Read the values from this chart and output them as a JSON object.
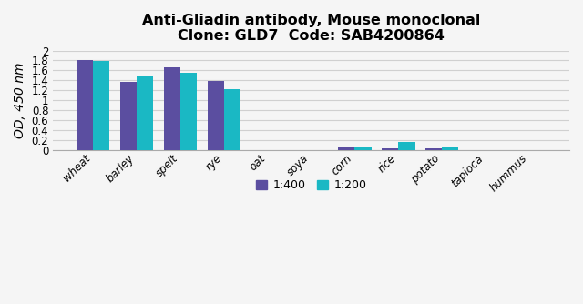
{
  "title_line1": "Anti-Gliadin antibody, Mouse monoclonal",
  "title_line2": "Clone: GLD7  Code: SAB4200864",
  "ylabel": "OD, 450 nm",
  "categories": [
    "wheat",
    "barley",
    "spelt",
    "rye",
    "oat",
    "soya",
    "corn",
    "rice",
    "potato",
    "tapioca",
    "hummus"
  ],
  "values_400": [
    1.81,
    1.37,
    1.67,
    1.39,
    0.0,
    0.0,
    0.055,
    0.03,
    0.025,
    0.0,
    0.0
  ],
  "values_200": [
    1.79,
    1.47,
    1.55,
    1.22,
    0.0,
    0.004,
    0.07,
    0.155,
    0.06,
    0.0,
    0.0
  ],
  "color_400": "#5b4ea0",
  "color_200": "#1ab8c4",
  "ylim": [
    0,
    2.0
  ],
  "ytick_values": [
    0,
    0.2,
    0.4,
    0.6,
    0.8,
    1.0,
    1.2,
    1.4,
    1.6,
    1.8,
    2.0
  ],
  "ytick_labels": [
    "0",
    "0.2",
    "0.4",
    "0.6",
    "0.8",
    "1",
    "1.2",
    "1.4",
    "1.6",
    "1.8",
    "2"
  ],
  "legend_labels": [
    "1:400",
    "1:200"
  ],
  "bar_width": 0.38,
  "background_color": "#f5f5f5",
  "grid_color": "#d0d0d0",
  "title_fontsize": 11.5,
  "axis_label_fontsize": 10,
  "tick_fontsize": 8.5,
  "legend_fontsize": 9
}
